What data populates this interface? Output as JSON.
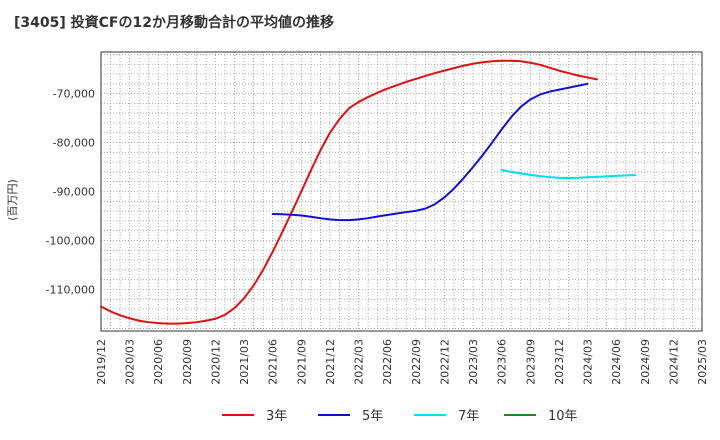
{
  "chart_data": {
    "type": "line",
    "title": "[3405]  投資CFの12か月移動合計の平均値の推移",
    "ylabel": "(百万円)",
    "xlabel": "",
    "ylim": [
      -118500,
      -61500
    ],
    "yticks": [
      -110000,
      -100000,
      -90000,
      -80000,
      -70000
    ],
    "ytick_labels": [
      "-110,000",
      "-100,000",
      "-90,000",
      "-80,000",
      "-70,000"
    ],
    "x_ticks": [
      "2019/12",
      "2020/03",
      "2020/06",
      "2020/09",
      "2020/12",
      "2021/03",
      "2021/06",
      "2021/09",
      "2021/12",
      "2022/03",
      "2022/06",
      "2022/09",
      "2022/12",
      "2023/03",
      "2023/06",
      "2023/09",
      "2023/12",
      "2024/03",
      "2024/06",
      "2024/09",
      "2024/12",
      "2025/03"
    ],
    "grid": true,
    "legend_position": "bottom",
    "series": [
      {
        "name": "3年",
        "color": "#dd1111",
        "start_index": 0,
        "values": [
          -113500,
          -114500,
          -115300,
          -115900,
          -116400,
          -116700,
          -116900,
          -117000,
          -117000,
          -116900,
          -116700,
          -116400,
          -116000,
          -115200,
          -113800,
          -111800,
          -109200,
          -106000,
          -102300,
          -98300,
          -94200,
          -90000,
          -85700,
          -81600,
          -78000,
          -75200,
          -73000,
          -71700,
          -70700,
          -69800,
          -69000,
          -68300,
          -67600,
          -67000,
          -66400,
          -65800,
          -65300,
          -64800,
          -64300,
          -63900,
          -63600,
          -63400,
          -63300,
          -63300,
          -63400,
          -63700,
          -64100,
          -64700,
          -65300,
          -65800,
          -66300,
          -66700,
          -67100
        ]
      },
      {
        "name": "5年",
        "color": "#1111cc",
        "start_index": 18,
        "values": [
          -94600,
          -94650,
          -94750,
          -94900,
          -95150,
          -95450,
          -95700,
          -95850,
          -95850,
          -95700,
          -95450,
          -95100,
          -94800,
          -94500,
          -94200,
          -93950,
          -93500,
          -92600,
          -91200,
          -89400,
          -87300,
          -85000,
          -82600,
          -80000,
          -77300,
          -74800,
          -72700,
          -71200,
          -70200,
          -69600,
          -69200,
          -68800,
          -68400,
          -68000
        ]
      },
      {
        "name": "7年",
        "color": "#00ddee",
        "start_index": 42,
        "values": [
          -85600,
          -86000,
          -86300,
          -86600,
          -86850,
          -87050,
          -87200,
          -87250,
          -87200,
          -87100,
          -87000,
          -86900,
          -86800,
          -86700,
          -86650
        ]
      },
      {
        "name": "10年",
        "color": "#228822",
        "start_index": 0,
        "values": []
      }
    ]
  }
}
